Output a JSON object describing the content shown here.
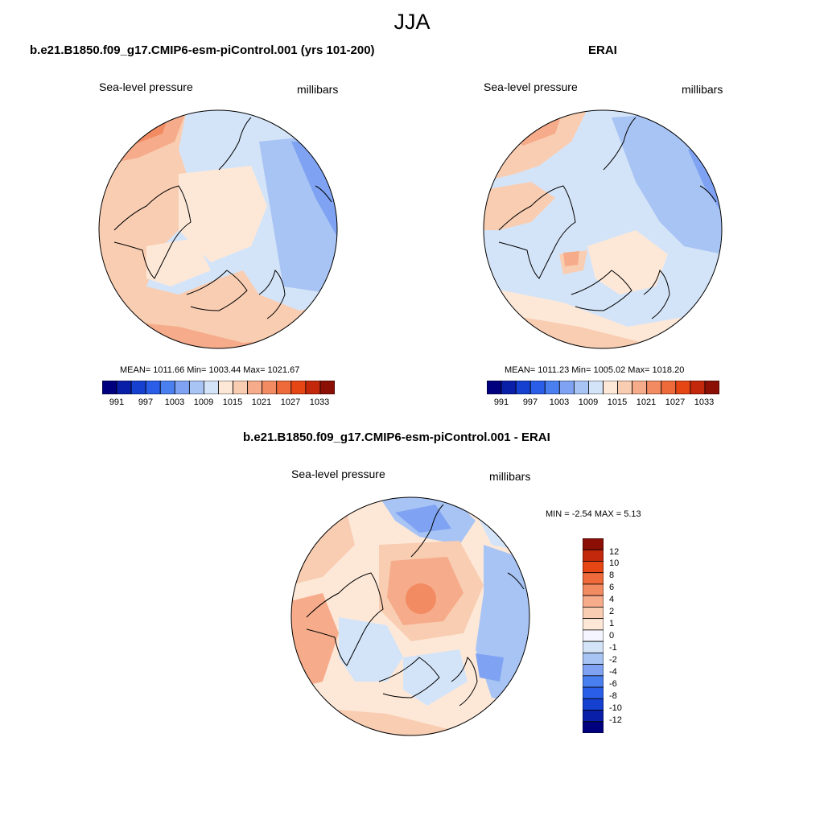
{
  "figure": {
    "title": "JJA"
  },
  "panels": {
    "model": {
      "title": "b.e21.B1850.f09_g17.CMIP6-esm-piControl.001 (yrs 101-200)",
      "variable": "Sea-level pressure",
      "units": "millibars",
      "stats": "MEAN= 1011.66  Min= 1003.44  Max= 1021.67"
    },
    "obs": {
      "title": "ERAI",
      "variable": "Sea-level pressure",
      "units": "millibars",
      "stats": "MEAN= 1011.23  Min= 1005.02  Max= 1018.20"
    },
    "diff": {
      "title": "b.e21.B1850.f09_g17.CMIP6-esm-piControl.001 - ERAI",
      "variable": "Sea-level pressure",
      "units": "millibars",
      "stats": "MIN =  -2.54 MAX =   5.13"
    }
  },
  "colorbar_abs": {
    "colors": [
      "#00007f",
      "#0a1fa8",
      "#1540d0",
      "#2a5ee8",
      "#4a7ff0",
      "#7fa3f2",
      "#a8c4f4",
      "#d4e4f8",
      "#fde8d8",
      "#f9cdb2",
      "#f6ab8a",
      "#f28b62",
      "#ee6a3a",
      "#e64514",
      "#c4280c",
      "#8b0f05"
    ],
    "labels": [
      "991",
      "997",
      "1003",
      "1009",
      "1015",
      "1021",
      "1027",
      "1033"
    ]
  },
  "colorbar_diff": {
    "colors": [
      "#00007f",
      "#0a1fa8",
      "#1540d0",
      "#2a5ee8",
      "#4a7ff0",
      "#7fa3f2",
      "#a8c4f4",
      "#d4e4f8",
      "#f5f5ff",
      "#fde8d8",
      "#f9cdb2",
      "#f6ab8a",
      "#f28b62",
      "#ee6a3a",
      "#e64514",
      "#c4280c",
      "#8b0f05"
    ],
    "labels": [
      "12",
      "10",
      "8",
      "6",
      "4",
      "2",
      "1",
      "0",
      "-1",
      "-2",
      "-4",
      "-6",
      "-8",
      "-10",
      "-12"
    ]
  }
}
